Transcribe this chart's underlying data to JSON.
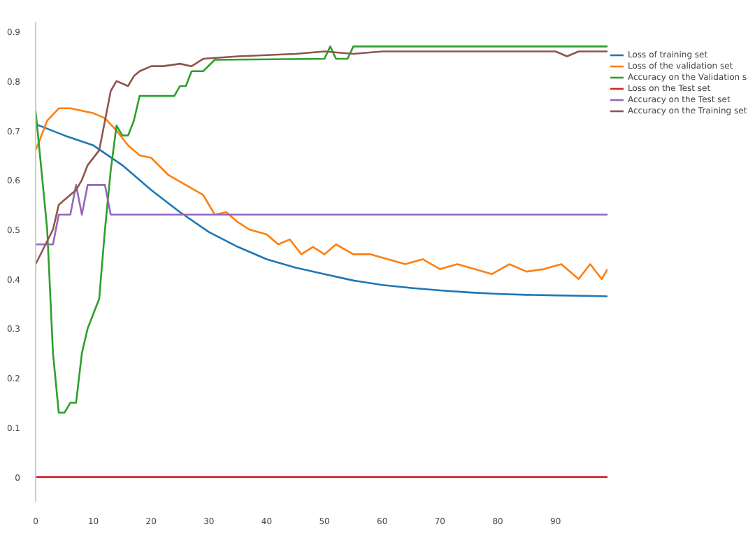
{
  "chart_data": {
    "type": "line",
    "xlim": [
      0,
      99
    ],
    "ylim": [
      -0.05,
      0.92
    ],
    "xticks": [
      0,
      10,
      20,
      30,
      40,
      50,
      60,
      70,
      80,
      90
    ],
    "yticks": [
      0,
      0.1,
      0.2,
      0.3,
      0.4,
      0.5,
      0.6,
      0.7,
      0.8,
      0.9
    ],
    "grid": false,
    "legend": "top right",
    "line_style": "solid",
    "marker": "none",
    "series": [
      {
        "name": "Loss of training set",
        "color": "#1f77b4",
        "x": [
          0,
          5,
          10,
          15,
          20,
          25,
          30,
          35,
          40,
          45,
          50,
          55,
          60,
          65,
          70,
          75,
          80,
          85,
          90,
          95,
          99
        ],
        "values": [
          0.713,
          0.69,
          0.67,
          0.63,
          0.58,
          0.535,
          0.495,
          0.465,
          0.44,
          0.423,
          0.41,
          0.397,
          0.388,
          0.382,
          0.377,
          0.373,
          0.37,
          0.368,
          0.367,
          0.366,
          0.365
        ]
      },
      {
        "name": "Loss of the validation set",
        "color": "#ff7f0e",
        "x": [
          0,
          2,
          4,
          6,
          8,
          10,
          12,
          14,
          16,
          18,
          20,
          23,
          26,
          29,
          31,
          33,
          35,
          37,
          40,
          42,
          44,
          46,
          48,
          50,
          52,
          55,
          58,
          61,
          64,
          67,
          70,
          73,
          76,
          79,
          82,
          85,
          88,
          91,
          94,
          96,
          98,
          99
        ],
        "values": [
          0.66,
          0.72,
          0.745,
          0.745,
          0.74,
          0.735,
          0.725,
          0.7,
          0.67,
          0.65,
          0.645,
          0.61,
          0.59,
          0.57,
          0.53,
          0.535,
          0.515,
          0.5,
          0.49,
          0.47,
          0.48,
          0.45,
          0.465,
          0.45,
          0.47,
          0.45,
          0.45,
          0.44,
          0.43,
          0.44,
          0.42,
          0.43,
          0.42,
          0.41,
          0.43,
          0.415,
          0.42,
          0.43,
          0.4,
          0.43,
          0.4,
          0.42
        ]
      },
      {
        "name": "Accuracy on the Validation s",
        "color": "#2ca02c",
        "x": [
          0,
          2,
          3,
          4,
          5,
          6,
          7,
          8,
          9,
          10,
          11,
          12,
          13,
          14,
          15,
          16,
          17,
          18,
          24,
          25,
          26,
          27,
          29,
          31,
          50,
          51,
          52,
          54,
          55,
          99
        ],
        "values": [
          0.74,
          0.5,
          0.25,
          0.13,
          0.13,
          0.15,
          0.15,
          0.25,
          0.3,
          0.33,
          0.36,
          0.5,
          0.62,
          0.71,
          0.69,
          0.69,
          0.72,
          0.77,
          0.77,
          0.79,
          0.79,
          0.82,
          0.82,
          0.843,
          0.845,
          0.87,
          0.845,
          0.845,
          0.87,
          0.87
        ]
      },
      {
        "name": "Loss on the Test set",
        "color": "#d62728",
        "x": [
          0,
          99
        ],
        "values": [
          0,
          0
        ]
      },
      {
        "name": "Accuracy on the Test set",
        "color": "#9467bd",
        "x": [
          0,
          3,
          4,
          6,
          7,
          8,
          9,
          12,
          13,
          99
        ],
        "values": [
          0.47,
          0.47,
          0.53,
          0.53,
          0.59,
          0.53,
          0.59,
          0.59,
          0.53,
          0.53
        ]
      },
      {
        "name": "Accuracy on the Training set",
        "color": "#8c564b",
        "x": [
          0,
          3,
          4,
          5,
          7,
          8,
          9,
          11,
          12,
          13,
          14,
          16,
          17,
          18,
          20,
          22,
          25,
          27,
          29,
          35,
          45,
          50,
          55,
          60,
          70,
          80,
          90,
          92,
          94,
          99
        ],
        "values": [
          0.43,
          0.5,
          0.55,
          0.56,
          0.58,
          0.6,
          0.63,
          0.66,
          0.72,
          0.78,
          0.8,
          0.79,
          0.81,
          0.82,
          0.83,
          0.83,
          0.835,
          0.83,
          0.845,
          0.85,
          0.855,
          0.86,
          0.855,
          0.86,
          0.86,
          0.86,
          0.86,
          0.85,
          0.86,
          0.86
        ]
      }
    ]
  }
}
